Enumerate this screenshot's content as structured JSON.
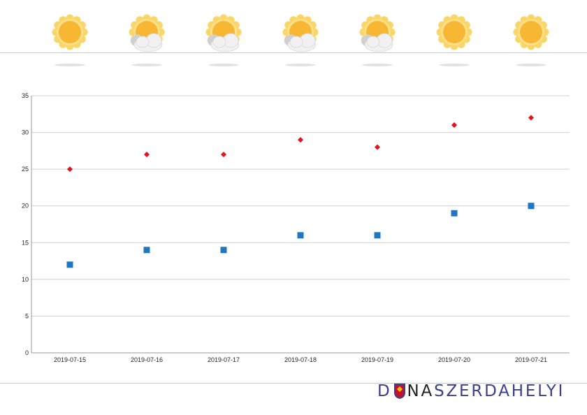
{
  "weather": {
    "days": [
      {
        "icon": "sun-icon"
      },
      {
        "icon": "sun-behind-cloud-icon"
      },
      {
        "icon": "sun-behind-cloud-icon"
      },
      {
        "icon": "sun-behind-cloud-icon"
      },
      {
        "icon": "sun-behind-cloud-icon"
      },
      {
        "icon": "sun-icon"
      },
      {
        "icon": "sun-icon"
      }
    ]
  },
  "chart_data": {
    "type": "scatter",
    "categories": [
      "2019-07-15",
      "2019-07-16",
      "2019-07-17",
      "2019-07-18",
      "2019-07-19",
      "2019-07-20",
      "2019-07-21"
    ],
    "series": [
      {
        "values": [
          25,
          27,
          27,
          29,
          28,
          31,
          32
        ],
        "color": "#e3121b",
        "marker": "diamond"
      },
      {
        "values": [
          12,
          14,
          14,
          16,
          16,
          19,
          20
        ],
        "color": "#1f77c4",
        "marker": "square"
      }
    ],
    "yticks": [
      0,
      5,
      10,
      15,
      20,
      25,
      30,
      35
    ],
    "ylim": [
      0,
      35
    ],
    "grid": true,
    "legend": "none"
  },
  "brand": {
    "part1": "D",
    "part2": "NA",
    "part3": "SZERDAHELYI"
  },
  "colors": {
    "sun": "#f7b733",
    "sun_ring": "#fbd565",
    "cloud": "#f1f1f1",
    "grid": "#cfcfcf"
  }
}
